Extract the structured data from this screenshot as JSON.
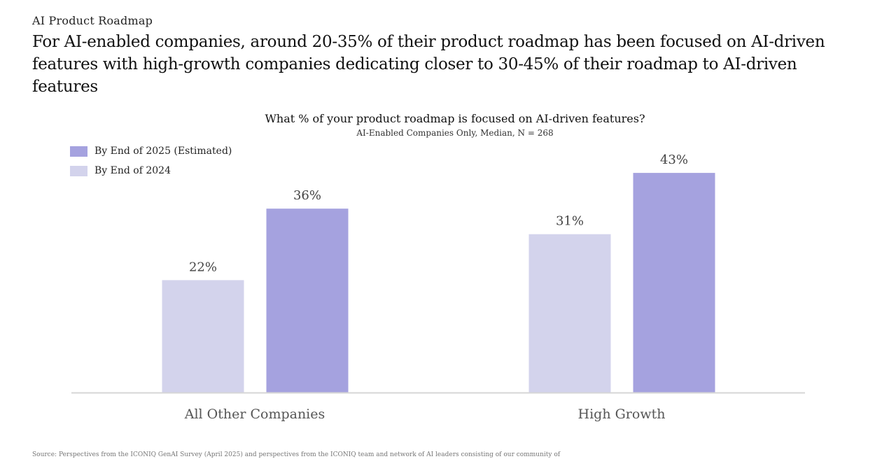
{
  "header": {
    "kicker": "AI Product Roadmap",
    "headline": "For AI-enabled companies, around 20-35% of their product roadmap has been focused on AI-driven features with high-growth companies dedicating closer to 30-45% of their roadmap to AI-driven features"
  },
  "colors": {
    "series_2025": "#a5a2df",
    "series_2024": "#d3d3ec",
    "axis": "#d6d6d6",
    "value_label": "#444444",
    "category_label": "#555555"
  },
  "chart_data": {
    "type": "bar",
    "title": "What % of your product roadmap is focused on AI-driven features?",
    "subtitle": "AI-Enabled Companies Only, Median, N = 268",
    "categories": [
      "All Other Companies",
      "High Growth"
    ],
    "series": [
      {
        "name": "By End of 2024",
        "values": [
          22,
          31
        ],
        "labels": [
          "22%",
          "31%"
        ],
        "color": "#d3d3ec"
      },
      {
        "name": "By End of 2025 (Estimated)",
        "values": [
          36,
          43
        ],
        "labels": [
          "36%",
          "43%"
        ],
        "color": "#a5a2df"
      }
    ],
    "legend": [
      {
        "label": "By End of 2025 (Estimated)",
        "color": "#a5a2df"
      },
      {
        "label": "By End of 2024",
        "color": "#d3d3ec"
      }
    ],
    "legend_position": "top-left",
    "xlabel": "",
    "ylabel": "",
    "ylim": [
      0,
      50
    ],
    "grid": false
  },
  "footer": {
    "source": "Source: Perspectives from the ICONIQ GenAI Survey (April 2025) and perspectives from the ICONIQ team and network of AI leaders consisting of our community of"
  }
}
